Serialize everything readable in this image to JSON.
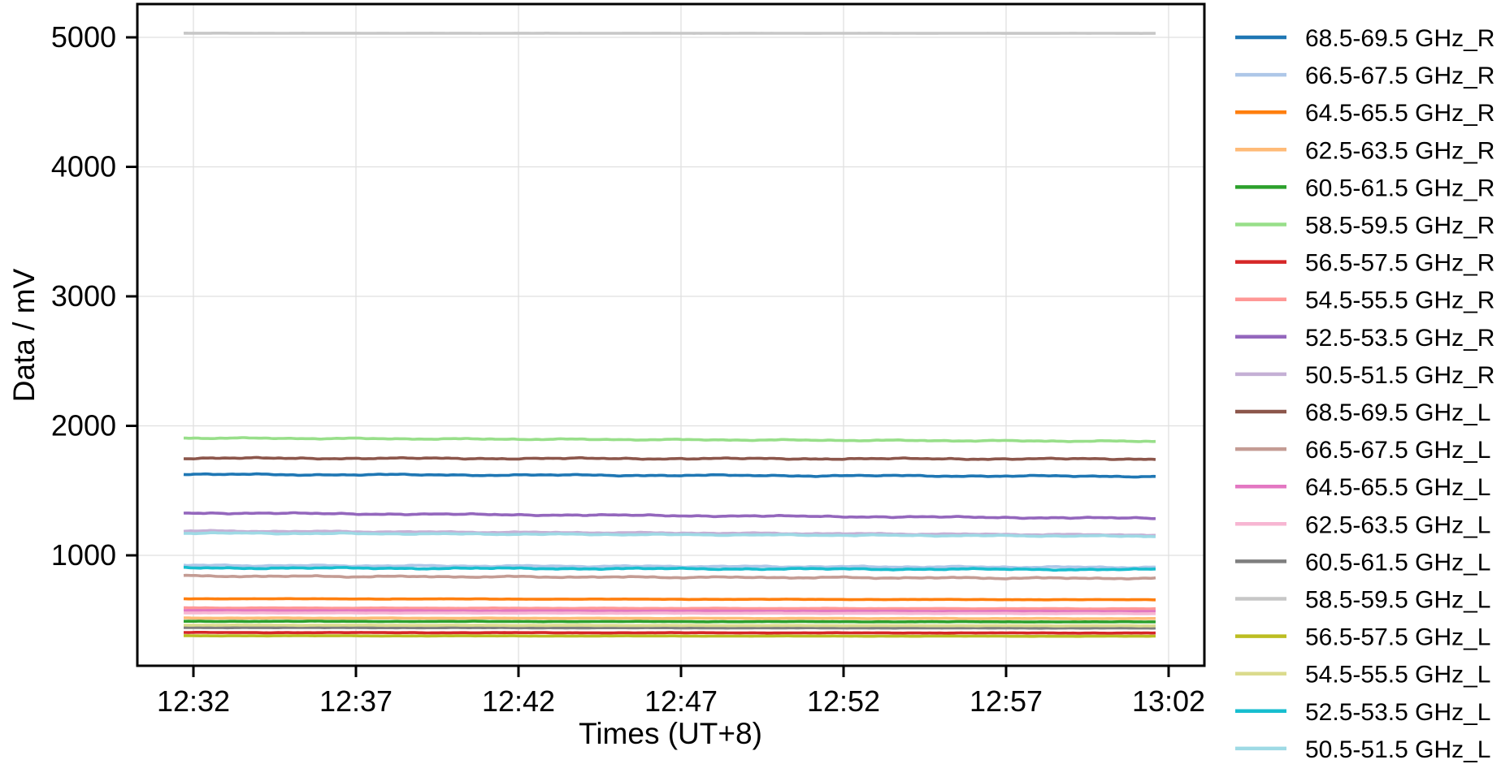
{
  "chart_data": {
    "type": "line",
    "title": "",
    "xlabel": "Times (UT+8)",
    "ylabel": "Data / mV",
    "x_tick_labels": [
      "12:32",
      "12:37",
      "12:42",
      "12:47",
      "12:52",
      "12:57",
      "13:02"
    ],
    "x_tick_minutes": [
      0,
      5,
      10,
      15,
      20,
      25,
      30
    ],
    "y_tick_labels": [
      "1000",
      "2000",
      "3000",
      "4000",
      "5000"
    ],
    "y_tick_values": [
      1000,
      2000,
      3000,
      4000,
      5000
    ],
    "ylim": [
      148,
      5257
    ],
    "xlim_minutes": [
      -1.73,
      31.1
    ],
    "data_start_minute": -0.3,
    "data_end_minute": 29.6,
    "grid": true,
    "legend_position": "right-outside",
    "series": [
      {
        "name": "68.5-69.5 GHz_R",
        "color": "#1f77b4",
        "start_mV": 1625,
        "end_mV": 1610,
        "noise_mV": 5
      },
      {
        "name": "66.5-67.5 GHz_R",
        "color": "#aec7e8",
        "start_mV": 922,
        "end_mV": 907,
        "noise_mV": 5
      },
      {
        "name": "64.5-65.5 GHz_R",
        "color": "#ff7f0e",
        "start_mV": 665,
        "end_mV": 657,
        "noise_mV": 1.5
      },
      {
        "name": "62.5-63.5 GHz_R",
        "color": "#ffbb78",
        "start_mV": 516,
        "end_mV": 511,
        "noise_mV": 1.5
      },
      {
        "name": "60.5-61.5 GHz_R",
        "color": "#2ca02c",
        "start_mV": 491,
        "end_mV": 486,
        "noise_mV": 1.5
      },
      {
        "name": "58.5-59.5 GHz_R",
        "color": "#98df8a",
        "start_mV": 1906,
        "end_mV": 1880,
        "noise_mV": 4
      },
      {
        "name": "56.5-57.5 GHz_R",
        "color": "#d62728",
        "start_mV": 404,
        "end_mV": 400,
        "noise_mV": 1.5
      },
      {
        "name": "54.5-55.5 GHz_R",
        "color": "#ff9896",
        "start_mV": 594,
        "end_mV": 587,
        "noise_mV": 1.5
      },
      {
        "name": "52.5-53.5 GHz_R",
        "color": "#9467bd",
        "start_mV": 1328,
        "end_mV": 1286,
        "noise_mV": 5
      },
      {
        "name": "50.5-51.5 GHz_R",
        "color": "#c5b0d5",
        "start_mV": 1188,
        "end_mV": 1157,
        "noise_mV": 4
      },
      {
        "name": "68.5-69.5 GHz_L",
        "color": "#8c564b",
        "start_mV": 1750,
        "end_mV": 1744,
        "noise_mV": 5
      },
      {
        "name": "66.5-67.5 GHz_L",
        "color": "#c49c94",
        "start_mV": 840,
        "end_mV": 822,
        "noise_mV": 5
      },
      {
        "name": "64.5-65.5 GHz_L",
        "color": "#e377c2",
        "start_mV": 574,
        "end_mV": 567,
        "noise_mV": 1.5
      },
      {
        "name": "62.5-63.5 GHz_L",
        "color": "#f7b6d2",
        "start_mV": 556,
        "end_mV": 550,
        "noise_mV": 1.5
      },
      {
        "name": "60.5-61.5 GHz_L",
        "color": "#7f7f7f",
        "start_mV": 442,
        "end_mV": 438,
        "noise_mV": 1.2
      },
      {
        "name": "58.5-59.5 GHz_L",
        "color": "#c7c7c7",
        "start_mV": 5032,
        "end_mV": 5031,
        "noise_mV": 0.6
      },
      {
        "name": "56.5-57.5 GHz_L",
        "color": "#bcbd22",
        "start_mV": 379,
        "end_mV": 375,
        "noise_mV": 1.2
      },
      {
        "name": "54.5-55.5 GHz_L",
        "color": "#dbdb8d",
        "start_mV": 461,
        "end_mV": 456,
        "noise_mV": 1.2
      },
      {
        "name": "52.5-53.5 GHz_L",
        "color": "#17becf",
        "start_mV": 903,
        "end_mV": 890,
        "noise_mV": 5
      },
      {
        "name": "50.5-51.5 GHz_L",
        "color": "#9edae5",
        "start_mV": 1172,
        "end_mV": 1147,
        "noise_mV": 4
      }
    ],
    "style": {
      "grid_color": "#e0e0e0",
      "spine_color": "#000000",
      "tick_color": "#000000",
      "text_color": "#000000",
      "background": "#ffffff",
      "line_width": 3.6
    }
  }
}
